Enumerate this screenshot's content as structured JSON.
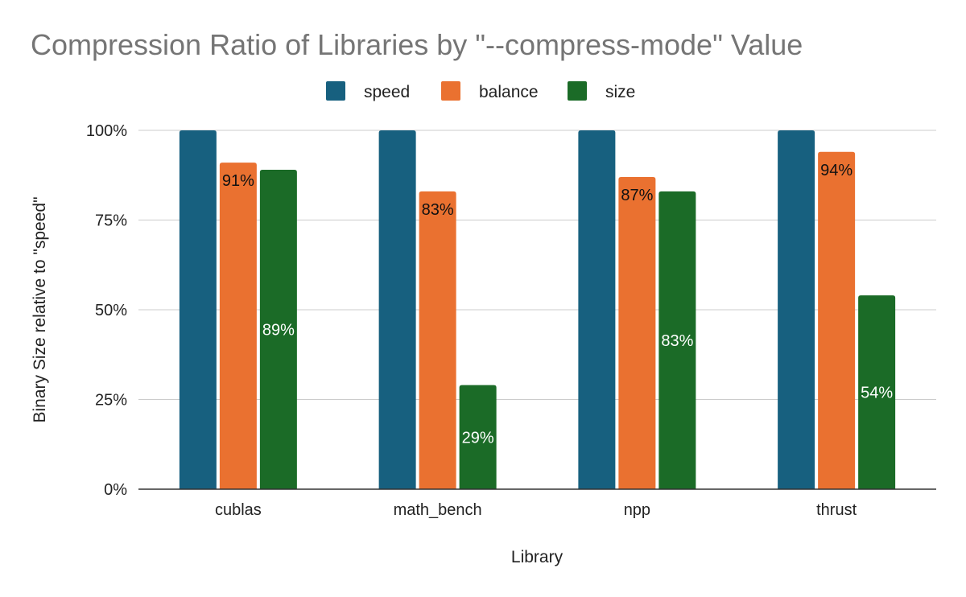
{
  "chart_data": {
    "type": "bar",
    "title": "Compression Ratio of Libraries by \"--compress-mode\" Value",
    "xlabel": "Library",
    "ylabel": "Binary Size relative to \"speed\"",
    "categories": [
      "cublas",
      "math_bench",
      "npp",
      "thrust"
    ],
    "series": [
      {
        "name": "speed",
        "color": "#17607f",
        "values": [
          100,
          100,
          100,
          100
        ],
        "labels": [
          "",
          "",
          "",
          ""
        ],
        "label_color": "#222222"
      },
      {
        "name": "balance",
        "color": "#ea7130",
        "values": [
          91,
          83,
          87,
          94
        ],
        "labels": [
          "91%",
          "83%",
          "87%",
          "94%"
        ],
        "label_color": "#111111"
      },
      {
        "name": "size",
        "color": "#1b6b27",
        "values": [
          89,
          29,
          83,
          54
        ],
        "labels": [
          "89%",
          "29%",
          "83%",
          "54%"
        ],
        "label_color": "#ffffff"
      }
    ],
    "ylim": [
      0,
      100
    ],
    "yticks": [
      0,
      25,
      50,
      75,
      100
    ],
    "ytick_labels": [
      "0%",
      "25%",
      "50%",
      "75%",
      "100%"
    ],
    "grid": true,
    "legend_position": "top-center"
  }
}
